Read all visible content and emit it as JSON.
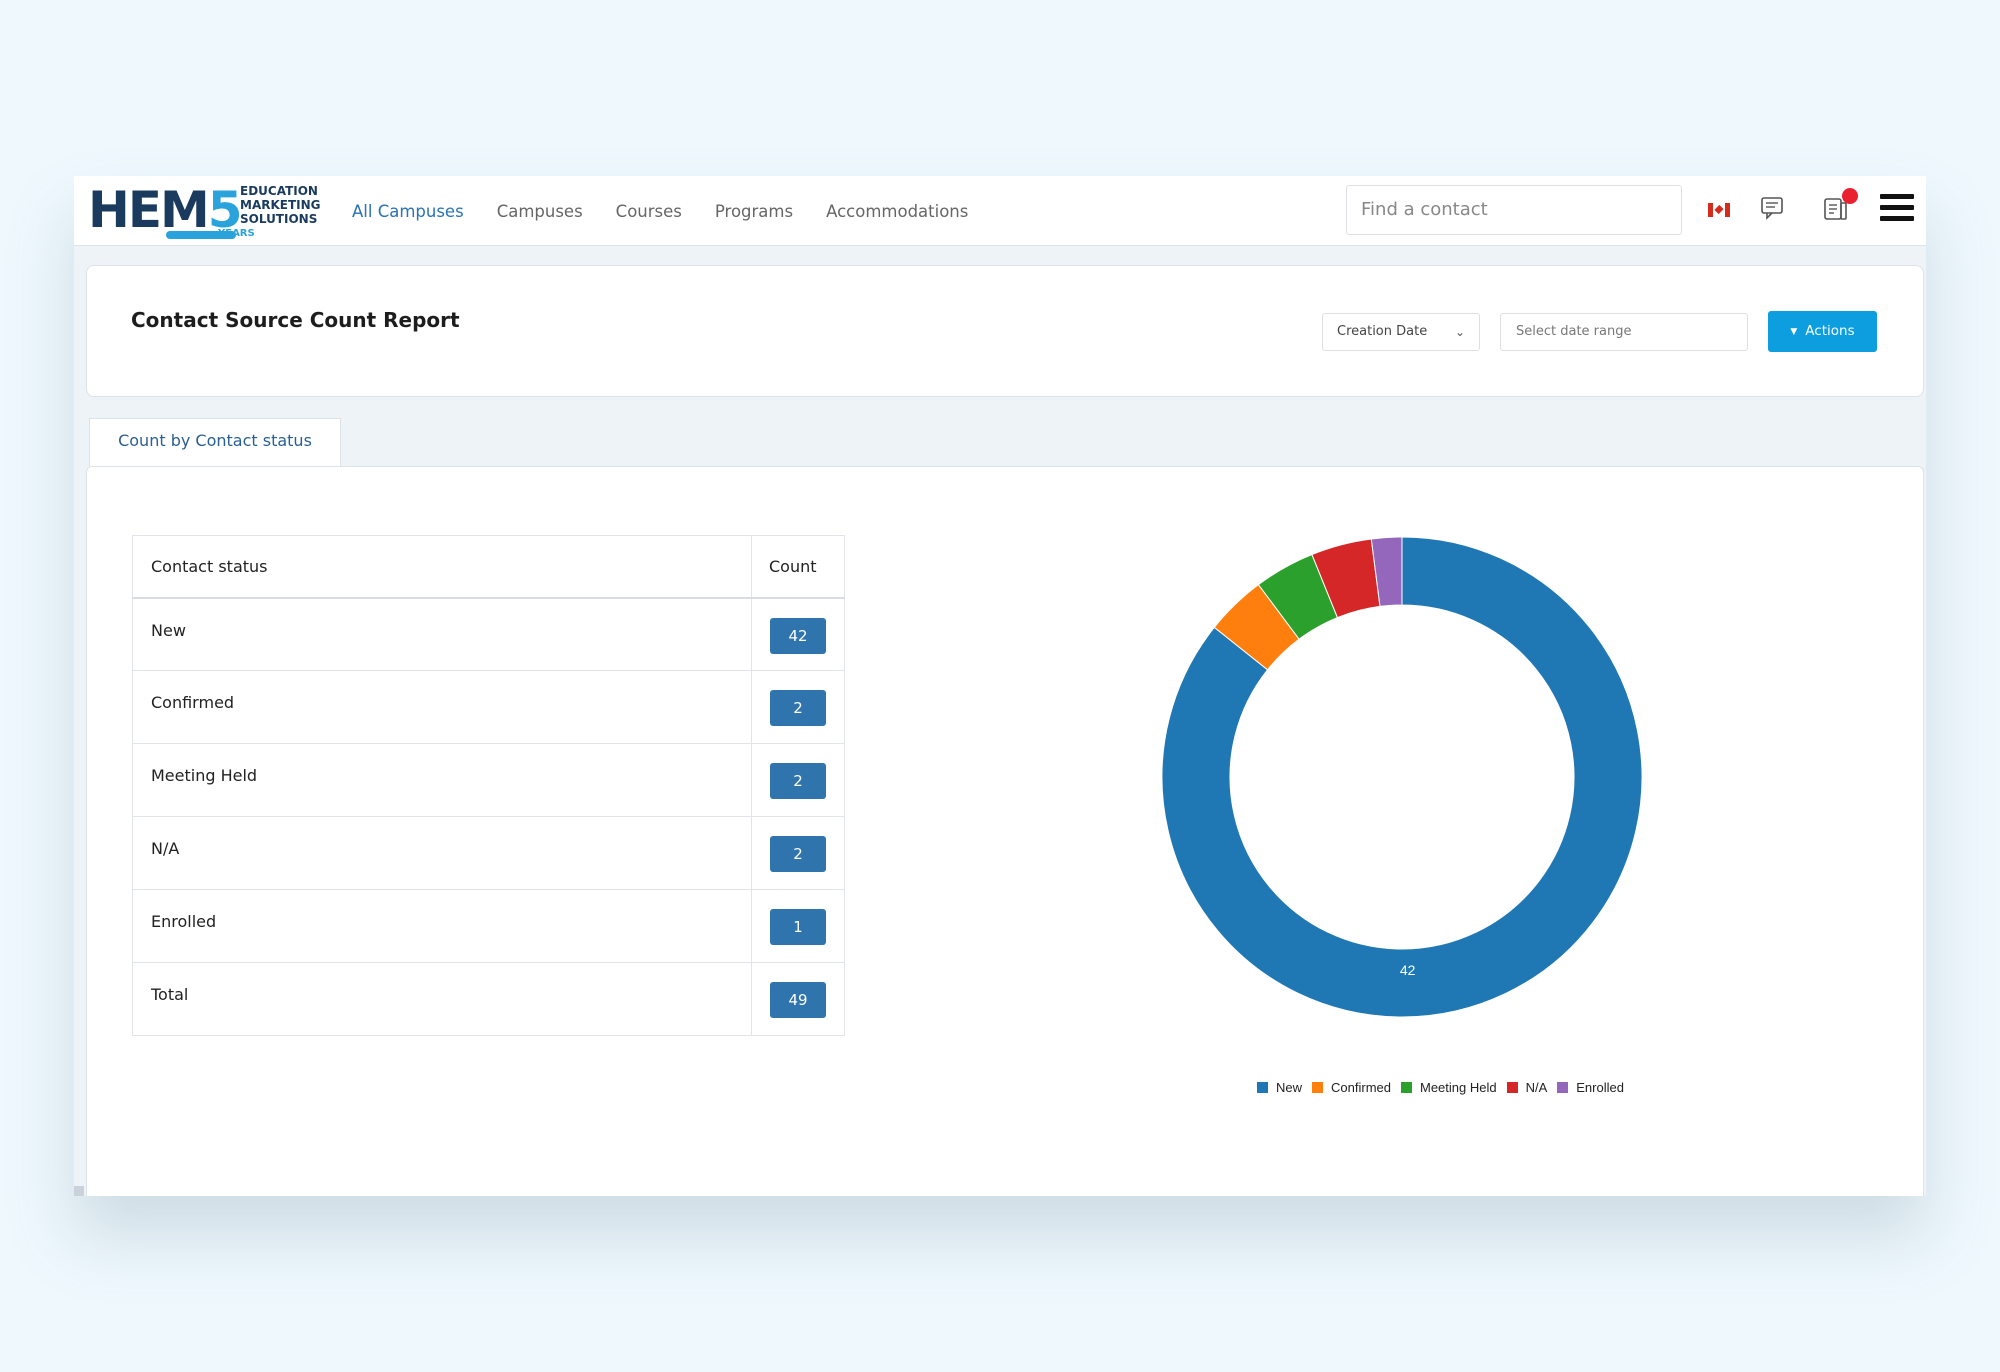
{
  "logo": {
    "brand": "HEM5",
    "tagline": "EDUCATION MARKETING SOLUTIONS",
    "years": "YEARS"
  },
  "nav": {
    "items": [
      {
        "label": "All Campuses",
        "active": true
      },
      {
        "label": "Campuses",
        "active": false
      },
      {
        "label": "Courses",
        "active": false
      },
      {
        "label": "Programs",
        "active": false
      },
      {
        "label": "Accommodations",
        "active": false
      }
    ]
  },
  "search": {
    "placeholder": "Find a contact"
  },
  "icons": {
    "flag": "canada-flag-icon",
    "chat": "chat-icon",
    "notifications": "notifications-icon",
    "menu": "hamburger-menu-icon"
  },
  "report": {
    "title": "Contact Source Count Report",
    "date_filter": "Creation Date",
    "date_range_placeholder": "Select date range",
    "actions_label": "Actions"
  },
  "tab": {
    "label": "Count by Contact status"
  },
  "table": {
    "headers": [
      "Contact status",
      "Count"
    ],
    "rows": [
      {
        "status": "New",
        "count": "42"
      },
      {
        "status": "Confirmed",
        "count": "2"
      },
      {
        "status": "Meeting Held",
        "count": "2"
      },
      {
        "status": "N/A",
        "count": "2"
      },
      {
        "status": "Enrolled",
        "count": "1"
      },
      {
        "status": "Total",
        "count": "49"
      }
    ]
  },
  "colors": {
    "accent": "#0d9ee0",
    "badge": "#2f74ad",
    "nav_active": "#2a72b5"
  },
  "chart_data": {
    "type": "pie",
    "donut": true,
    "categories": [
      "New",
      "Confirmed",
      "Meeting Held",
      "N/A",
      "Enrolled"
    ],
    "values": [
      42,
      2,
      2,
      2,
      1
    ],
    "colors": [
      "#1f77b4",
      "#ff7f0e",
      "#2ca02c",
      "#d62728",
      "#9467bd"
    ],
    "data_labels": [
      "42",
      "",
      "",
      "",
      ""
    ],
    "legend_position": "bottom"
  }
}
